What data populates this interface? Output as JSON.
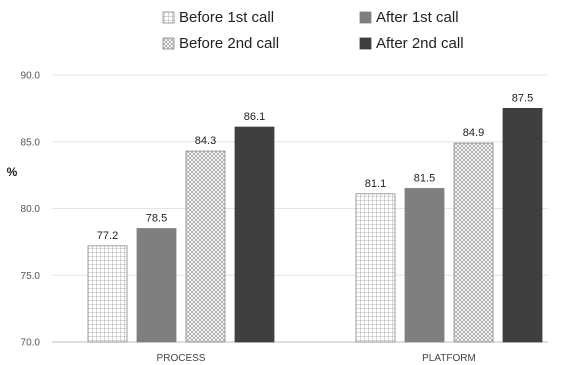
{
  "chart_data": {
    "type": "bar",
    "title": "",
    "xlabel": "",
    "ylabel": "%",
    "ylim": [
      70,
      90
    ],
    "yticks": [
      "70.0",
      "75.0",
      "80.0",
      "85.0",
      "90.0"
    ],
    "grid": true,
    "legend_position": "top",
    "categories": [
      "PROCESS",
      "PLATFORM"
    ],
    "series": [
      {
        "name": "Before 1st call",
        "values": [
          77.2,
          81.1
        ],
        "labels": [
          "77.2",
          "81.1"
        ],
        "pattern": "grid",
        "color": "#ffffff",
        "stroke": "#888888"
      },
      {
        "name": "After 1st call",
        "values": [
          78.5,
          81.5
        ],
        "labels": [
          "78.5",
          "81.5"
        ],
        "pattern": "solid",
        "color": "#7f7f7f",
        "stroke": "#7f7f7f"
      },
      {
        "name": "Before 2nd call",
        "values": [
          84.3,
          84.9
        ],
        "labels": [
          "84.3",
          "84.9"
        ],
        "pattern": "crosshatch",
        "color": "#ffffff",
        "stroke": "#888888"
      },
      {
        "name": "After 2nd call",
        "values": [
          86.1,
          87.5
        ],
        "labels": [
          "86.1",
          "87.5"
        ],
        "pattern": "solid",
        "color": "#3f3f3f",
        "stroke": "#3f3f3f"
      }
    ]
  }
}
